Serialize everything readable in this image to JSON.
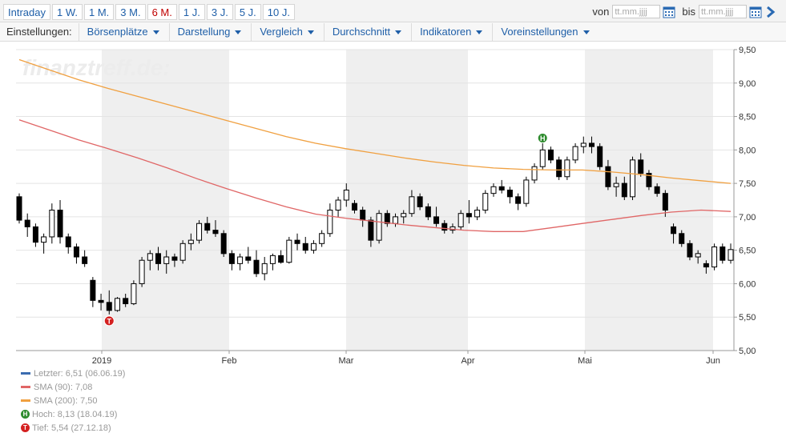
{
  "periods": [
    "Intraday",
    "1 W.",
    "1 M.",
    "3 M.",
    "6 M.",
    "1 J.",
    "3 J.",
    "5 J.",
    "10 J."
  ],
  "active_period_index": 4,
  "date_range": {
    "from_label": "von",
    "to_label": "bis",
    "from_placeholder": "tt.mm.jjjj",
    "to_placeholder": "tt.mm.jjjj"
  },
  "settings": {
    "label": "Einstellungen:",
    "menus": [
      "Börsenplätze",
      "Darstellung",
      "Vergleich",
      "Durchschnitt",
      "Indikatoren",
      "Voreinstellungen"
    ]
  },
  "colors": {
    "link": "#1f5fa8",
    "active_tab": "#c00000",
    "sma90": "#e06666",
    "sma200": "#f0a040",
    "last": "#3b6cb0",
    "high_marker": "#2e8b2e",
    "low_marker": "#d42020",
    "shade": "#efefef"
  },
  "chart_data": {
    "type": "candlestick",
    "watermark": "finanztreff.de:",
    "x_ticks": [
      "2019",
      "Feb",
      "Mar",
      "Apr",
      "Mai",
      "Jun"
    ],
    "y_ticks": [
      "9,50",
      "9,00",
      "8,50",
      "8,00",
      "7,50",
      "7,00",
      "6,50",
      "6,00",
      "5,50",
      "5,00"
    ],
    "ylim": [
      5.0,
      9.5
    ],
    "grid": true,
    "shaded_months": [
      "Januar",
      "März",
      "Mai"
    ],
    "sma200": [
      9.35,
      9.2,
      9.05,
      8.92,
      8.8,
      8.68,
      8.56,
      8.44,
      8.32,
      8.2,
      8.1,
      8.02,
      7.95,
      7.88,
      7.82,
      7.77,
      7.73,
      7.71,
      7.7,
      7.7,
      7.67,
      7.63,
      7.58,
      7.54,
      7.5
    ],
    "sma90": [
      8.45,
      8.3,
      8.15,
      8.02,
      7.88,
      7.73,
      7.57,
      7.42,
      7.28,
      7.15,
      7.04,
      6.98,
      6.93,
      6.88,
      6.84,
      6.8,
      6.78,
      6.78,
      6.84,
      6.9,
      6.96,
      7.02,
      7.07,
      7.1,
      7.08
    ],
    "ohlc": [
      [
        7.3,
        7.35,
        6.9,
        6.95
      ],
      [
        6.95,
        7.05,
        6.7,
        6.85
      ],
      [
        6.85,
        6.9,
        6.55,
        6.62
      ],
      [
        6.62,
        6.75,
        6.45,
        6.7
      ],
      [
        6.7,
        7.2,
        6.6,
        7.1
      ],
      [
        7.1,
        7.25,
        6.6,
        6.7
      ],
      [
        6.7,
        6.75,
        6.45,
        6.55
      ],
      [
        6.55,
        6.6,
        6.3,
        6.4
      ],
      [
        6.4,
        6.5,
        6.25,
        6.3
      ],
      [
        6.05,
        6.1,
        5.65,
        5.75
      ],
      [
        5.75,
        5.85,
        5.6,
        5.72
      ],
      [
        5.72,
        5.9,
        5.54,
        5.6
      ],
      [
        5.6,
        5.8,
        5.58,
        5.78
      ],
      [
        5.78,
        5.85,
        5.65,
        5.7
      ],
      [
        5.7,
        6.05,
        5.68,
        6.0
      ],
      [
        6.0,
        6.4,
        5.95,
        6.35
      ],
      [
        6.35,
        6.5,
        6.2,
        6.45
      ],
      [
        6.45,
        6.55,
        6.2,
        6.3
      ],
      [
        6.3,
        6.5,
        6.15,
        6.4
      ],
      [
        6.4,
        6.45,
        6.25,
        6.35
      ],
      [
        6.35,
        6.65,
        6.3,
        6.6
      ],
      [
        6.6,
        6.75,
        6.5,
        6.65
      ],
      [
        6.65,
        6.95,
        6.6,
        6.9
      ],
      [
        6.9,
        7.0,
        6.75,
        6.8
      ],
      [
        6.8,
        6.95,
        6.7,
        6.75
      ],
      [
        6.75,
        6.8,
        6.4,
        6.45
      ],
      [
        6.45,
        6.5,
        6.2,
        6.3
      ],
      [
        6.3,
        6.45,
        6.2,
        6.4
      ],
      [
        6.4,
        6.55,
        6.3,
        6.35
      ],
      [
        6.35,
        6.5,
        6.1,
        6.15
      ],
      [
        6.15,
        6.4,
        6.05,
        6.3
      ],
      [
        6.3,
        6.45,
        6.2,
        6.42
      ],
      [
        6.42,
        6.5,
        6.3,
        6.32
      ],
      [
        6.32,
        6.7,
        6.3,
        6.65
      ],
      [
        6.65,
        6.75,
        6.5,
        6.6
      ],
      [
        6.6,
        6.7,
        6.45,
        6.5
      ],
      [
        6.5,
        6.65,
        6.45,
        6.6
      ],
      [
        6.6,
        6.8,
        6.55,
        6.75
      ],
      [
        6.75,
        7.2,
        6.7,
        7.1
      ],
      [
        7.1,
        7.3,
        7.0,
        7.25
      ],
      [
        7.25,
        7.5,
        7.15,
        7.4
      ],
      [
        7.2,
        7.25,
        7.05,
        7.1
      ],
      [
        7.1,
        7.15,
        6.85,
        6.95
      ],
      [
        6.95,
        7.0,
        6.55,
        6.65
      ],
      [
        6.65,
        7.1,
        6.6,
        7.05
      ],
      [
        7.05,
        7.1,
        6.85,
        6.9
      ],
      [
        6.9,
        7.05,
        6.85,
        7.0
      ],
      [
        7.0,
        7.1,
        6.9,
        7.05
      ],
      [
        7.05,
        7.4,
        7.0,
        7.3
      ],
      [
        7.3,
        7.35,
        7.1,
        7.15
      ],
      [
        7.15,
        7.2,
        6.95,
        7.0
      ],
      [
        7.0,
        7.15,
        6.85,
        6.9
      ],
      [
        6.9,
        6.95,
        6.75,
        6.8
      ],
      [
        6.8,
        6.9,
        6.75,
        6.85
      ],
      [
        6.85,
        7.1,
        6.8,
        7.05
      ],
      [
        7.05,
        7.25,
        6.9,
        7.0
      ],
      [
        7.0,
        7.15,
        6.95,
        7.1
      ],
      [
        7.1,
        7.4,
        7.05,
        7.35
      ],
      [
        7.35,
        7.5,
        7.3,
        7.45
      ],
      [
        7.45,
        7.55,
        7.35,
        7.4
      ],
      [
        7.4,
        7.45,
        7.2,
        7.3
      ],
      [
        7.3,
        7.35,
        7.1,
        7.2
      ],
      [
        7.2,
        7.6,
        7.15,
        7.55
      ],
      [
        7.55,
        7.8,
        7.5,
        7.75
      ],
      [
        7.75,
        8.13,
        7.7,
        8.0
      ],
      [
        8.0,
        8.05,
        7.8,
        7.85
      ],
      [
        7.85,
        7.9,
        7.55,
        7.6
      ],
      [
        7.6,
        7.9,
        7.55,
        7.85
      ],
      [
        7.85,
        8.1,
        7.8,
        8.05
      ],
      [
        8.05,
        8.2,
        7.95,
        8.1
      ],
      [
        8.1,
        8.2,
        7.95,
        8.05
      ],
      [
        8.05,
        8.1,
        7.7,
        7.75
      ],
      [
        7.75,
        7.85,
        7.4,
        7.45
      ],
      [
        7.45,
        7.6,
        7.3,
        7.5
      ],
      [
        7.5,
        7.6,
        7.25,
        7.3
      ],
      [
        7.3,
        7.9,
        7.25,
        7.85
      ],
      [
        7.85,
        7.95,
        7.6,
        7.65
      ],
      [
        7.65,
        7.7,
        7.4,
        7.45
      ],
      [
        7.45,
        7.5,
        7.3,
        7.35
      ],
      [
        7.35,
        7.4,
        7.0,
        7.1
      ],
      [
        6.85,
        6.9,
        6.6,
        6.75
      ],
      [
        6.75,
        6.8,
        6.55,
        6.6
      ],
      [
        6.6,
        6.65,
        6.35,
        6.4
      ],
      [
        6.4,
        6.5,
        6.3,
        6.45
      ],
      [
        6.3,
        6.35,
        6.15,
        6.25
      ],
      [
        6.25,
        6.6,
        6.2,
        6.55
      ],
      [
        6.55,
        6.6,
        6.3,
        6.35
      ],
      [
        6.35,
        6.6,
        6.3,
        6.51
      ]
    ],
    "high_point": {
      "index": 64,
      "value": 8.13
    },
    "low_point": {
      "index": 11,
      "value": 5.54
    }
  },
  "legend": [
    {
      "key": "last",
      "text": "Letzter: 6,51 (06.06.19)"
    },
    {
      "key": "sma90",
      "text": "SMA (90): 7,08"
    },
    {
      "key": "sma200",
      "text": "SMA (200): 7,50"
    },
    {
      "key": "high",
      "text": "Hoch: 8,13 (18.04.19)",
      "marker": "H"
    },
    {
      "key": "low",
      "text": "Tief: 5,54 (27.12.18)",
      "marker": "T"
    }
  ]
}
